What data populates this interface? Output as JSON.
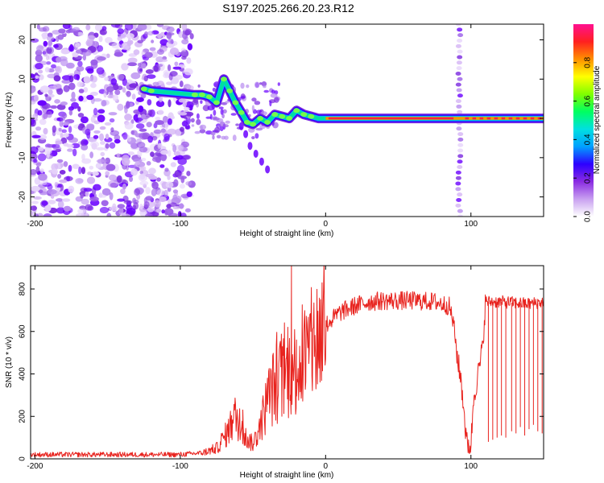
{
  "title": "S197.2025.266.20.23.R12",
  "chart_data": [
    {
      "type": "heatmap",
      "name": "spectrogram",
      "xlabel": "Height of straight line (km)",
      "ylabel": "Frequency (Hz)",
      "xlim": [
        -203,
        150
      ],
      "ylim": [
        -25,
        24
      ],
      "xticks": [
        -200,
        -100,
        0,
        100
      ],
      "xtick_labels": [
        "-200",
        "-100",
        "0",
        "100"
      ],
      "yticks": [
        -20,
        -10,
        0,
        10,
        20
      ],
      "ytick_labels": [
        "-20",
        "-10",
        "0",
        "10",
        "20"
      ],
      "colorbar": {
        "label": "Normalized spectral amplitude",
        "range": [
          0,
          1
        ],
        "ticks": [
          0,
          0.2,
          0.4,
          0.6,
          0.8
        ],
        "tick_labels": [
          "0.0",
          "0.2",
          "0.4",
          "0.6",
          "0.8"
        ],
        "colors": [
          "#ffffff",
          "#c8a0f0",
          "#8a2be2",
          "#2d00ff",
          "#00a0ff",
          "#00e0e0",
          "#00ff60",
          "#80ff00",
          "#ffff00",
          "#ff9000",
          "#ff2020",
          "#ff1090"
        ]
      },
      "carrier_track": [
        [
          -125,
          7.5
        ],
        [
          -120,
          7
        ],
        [
          -90,
          6
        ],
        [
          -85,
          6
        ],
        [
          -80,
          5.5
        ],
        [
          -75,
          4
        ],
        [
          -70,
          10
        ],
        [
          -66,
          7
        ],
        [
          -62,
          4
        ],
        [
          -58,
          1.5
        ],
        [
          -54,
          -1
        ],
        [
          -50,
          -1.5
        ],
        [
          -45,
          0
        ],
        [
          -40,
          -1
        ],
        [
          -35,
          1
        ],
        [
          -30,
          0.5
        ],
        [
          -25,
          0
        ],
        [
          -20,
          2
        ],
        [
          -15,
          1
        ],
        [
          -10,
          0.5
        ],
        [
          -5,
          0
        ],
        [
          0,
          0
        ],
        [
          10,
          0
        ],
        [
          50,
          0
        ],
        [
          89,
          0
        ],
        [
          92,
          0
        ],
        [
          100,
          0
        ],
        [
          110,
          0
        ],
        [
          125,
          0
        ],
        [
          150,
          0
        ]
      ],
      "descending_branch": [
        [
          -58,
          -2
        ],
        [
          -55,
          -4
        ],
        [
          -52,
          -7
        ],
        [
          -48,
          -9
        ],
        [
          -44,
          -11
        ],
        [
          -40,
          -13
        ]
      ],
      "noise_region_x": [
        -203,
        -92
      ],
      "vertical_stripe_x": 92
    },
    {
      "type": "line",
      "name": "snr",
      "xlabel": "Height of straight line (km)",
      "ylabel": "SNR (10 * v/v)",
      "xlim": [
        -203,
        150
      ],
      "ylim": [
        0,
        910
      ],
      "xticks": [
        -200,
        -100,
        0,
        100
      ],
      "xtick_labels": [
        "-200",
        "-100",
        "0",
        "100"
      ],
      "yticks": [
        0,
        200,
        400,
        600,
        800
      ],
      "ytick_labels": [
        "0",
        "200",
        "400",
        "600",
        "800"
      ],
      "color": "#e8231e",
      "envelope": [
        [
          -203,
          20
        ],
        [
          -150,
          20
        ],
        [
          -100,
          20
        ],
        [
          -85,
          28
        ],
        [
          -75,
          50
        ],
        [
          -68,
          120
        ],
        [
          -62,
          200
        ],
        [
          -55,
          100
        ],
        [
          -50,
          70
        ],
        [
          -45,
          150
        ],
        [
          -40,
          280
        ],
        [
          -35,
          350
        ],
        [
          -30,
          380
        ],
        [
          -25,
          400
        ],
        [
          -20,
          430
        ],
        [
          -15,
          480
        ],
        [
          -10,
          520
        ],
        [
          -5,
          580
        ],
        [
          0,
          630
        ],
        [
          5,
          660
        ],
        [
          10,
          690
        ],
        [
          20,
          720
        ],
        [
          30,
          740
        ],
        [
          40,
          745
        ],
        [
          60,
          745
        ],
        [
          75,
          740
        ],
        [
          85,
          720
        ],
        [
          88,
          640
        ],
        [
          91,
          460
        ],
        [
          93,
          380
        ],
        [
          95,
          250
        ],
        [
          97,
          70
        ],
        [
          100,
          65
        ],
        [
          102,
          300
        ],
        [
          105,
          400
        ],
        [
          108,
          520
        ],
        [
          110,
          740
        ],
        [
          120,
          740
        ],
        [
          130,
          735
        ],
        [
          140,
          730
        ],
        [
          150,
          740
        ]
      ],
      "spikes": [
        [
          -23.5,
          910
        ],
        [
          -26,
          620
        ],
        [
          -32,
          470
        ],
        [
          -20,
          560
        ],
        [
          -63,
          250
        ],
        [
          -57,
          230
        ],
        [
          -40,
          380
        ]
      ],
      "dropouts": [
        [
          112,
          80
        ],
        [
          115,
          90
        ],
        [
          118,
          100
        ],
        [
          121,
          110
        ],
        [
          124,
          100
        ],
        [
          128,
          130
        ],
        [
          131,
          120
        ],
        [
          134,
          150
        ],
        [
          137,
          110
        ],
        [
          140,
          140
        ],
        [
          143,
          160
        ],
        [
          146,
          130
        ],
        [
          149,
          120
        ]
      ]
    }
  ]
}
